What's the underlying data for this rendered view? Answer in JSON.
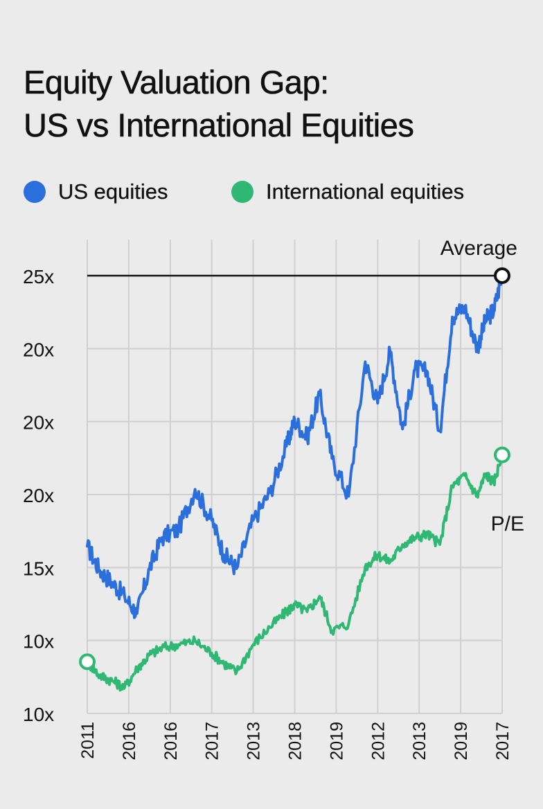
{
  "chart_data": {
    "type": "line",
    "title_lines": [
      "Equity Valuation Gap:",
      "US vs International Equities"
    ],
    "xlabel": "",
    "ylabel": "",
    "x_tick_labels": [
      "2011",
      "2016",
      "2016",
      "2017",
      "2013",
      "2018",
      "2019",
      "2012",
      "2013",
      "2019",
      "2017"
    ],
    "y_tick_labels": [
      "25x",
      "20x",
      "20x",
      "20x",
      "15x",
      "10x",
      "10x"
    ],
    "grid": true,
    "legend_position": "top",
    "colors": {
      "us": "#2a6fdc",
      "international": "#2fb873",
      "reference": "#111111",
      "grid": "#cfcfcf"
    },
    "series": [
      {
        "name": "US equities",
        "key": "us",
        "x": [
          0,
          0.3,
          0.6,
          0.9,
          1.2,
          1.5,
          1.8,
          2.2,
          2.6,
          3.0,
          3.3,
          3.6,
          4.0,
          4.4,
          4.8,
          5.0,
          5.3,
          5.6,
          5.9,
          6.3,
          6.7,
          7.0,
          7.3,
          7.6,
          7.9,
          8.2,
          8.5,
          8.8,
          9.1,
          9.4,
          9.6,
          9.8,
          10.0
        ],
        "values": [
          14.7,
          13.3,
          12.6,
          11.8,
          10.8,
          13.4,
          15.2,
          15.7,
          18.0,
          16.2,
          14.2,
          13.4,
          16.2,
          17.8,
          20.5,
          22.0,
          21.0,
          23.5,
          19.8,
          17.6,
          25.4,
          23.0,
          26.0,
          21.5,
          25.0,
          24.8,
          21.4,
          28.0,
          28.6,
          26.2,
          27.8,
          28.4,
          30.4
        ]
      },
      {
        "name": "International equities",
        "key": "international",
        "x": [
          0,
          0.3,
          0.6,
          0.9,
          1.2,
          1.5,
          1.8,
          2.2,
          2.6,
          3.0,
          3.3,
          3.6,
          4.0,
          4.4,
          4.8,
          5.0,
          5.3,
          5.6,
          5.9,
          6.3,
          6.7,
          7.0,
          7.3,
          7.6,
          7.9,
          8.2,
          8.5,
          8.8,
          9.1,
          9.4,
          9.6,
          9.8,
          10.0
        ],
        "values": [
          8.0,
          7.2,
          6.9,
          6.5,
          7.6,
          8.4,
          8.8,
          9.0,
          9.2,
          8.5,
          7.9,
          7.4,
          9.0,
          10.0,
          10.9,
          11.3,
          10.9,
          11.8,
          9.8,
          10.2,
          13.5,
          14.2,
          13.8,
          14.8,
          15.2,
          15.4,
          14.8,
          18.2,
          18.8,
          17.6,
          18.9,
          18.4,
          20.0
        ]
      }
    ],
    "reference_line": {
      "value": 30.4
    },
    "annotations": {
      "average": "Average",
      "pe": "P/E"
    }
  }
}
